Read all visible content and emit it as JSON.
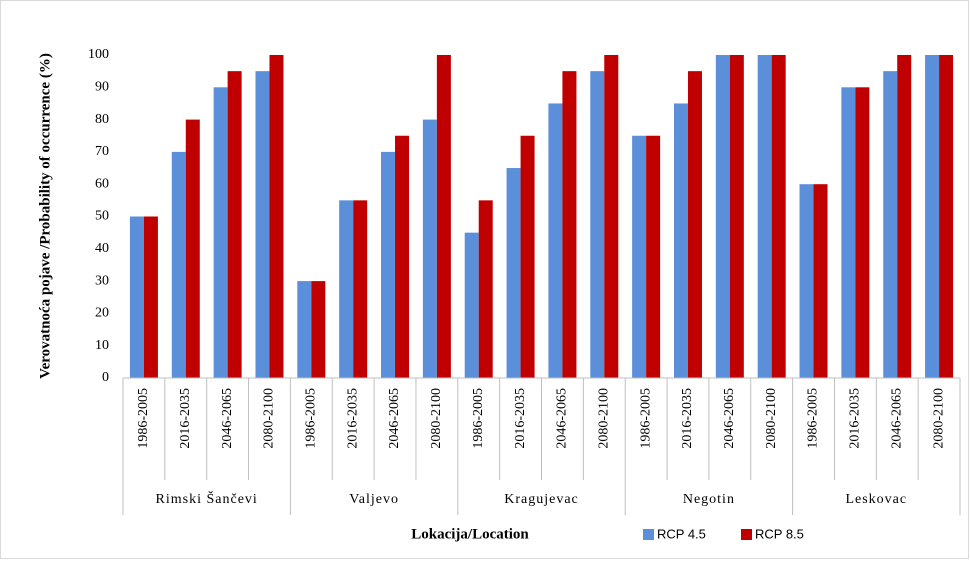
{
  "chart_data": {
    "type": "bar",
    "ylabel": "Verovatnoća pojave  /Probability of occurrence  (%)",
    "xlabel": "Lokacija/Location",
    "categories": [
      "1986-2005",
      "2016-2035",
      "2046-2065",
      "2080-2100",
      "1986-2005",
      "2016-2035",
      "2046-2065",
      "2080-2100",
      "1986-2005",
      "2016-2035",
      "2046-2065",
      "2080-2100",
      "1986-2005",
      "2016-2035",
      "2046-2065",
      "2080-2100",
      "1986-2005",
      "2016-2035",
      "2046-2065",
      "2080-2100"
    ],
    "groups": [
      "Rimski Šančevi",
      "Valjevo",
      "Kragujevac",
      "Negotin",
      "Leskovac"
    ],
    "series": [
      {
        "name": "RCP 4.5",
        "color": "#5b8fd9",
        "values": [
          50,
          70,
          90,
          95,
          30,
          55,
          70,
          80,
          45,
          65,
          85,
          95,
          75,
          85,
          100,
          100,
          60,
          90,
          95,
          100
        ]
      },
      {
        "name": "RCP 8.5",
        "color": "#c00000",
        "values": [
          50,
          80,
          95,
          100,
          30,
          55,
          75,
          100,
          55,
          75,
          95,
          100,
          75,
          95,
          100,
          100,
          60,
          90,
          100,
          100
        ]
      }
    ],
    "ylim": [
      0,
      100
    ],
    "yticks": [
      0,
      10,
      20,
      30,
      40,
      50,
      60,
      70,
      80,
      90,
      100
    ],
    "grid": false
  }
}
